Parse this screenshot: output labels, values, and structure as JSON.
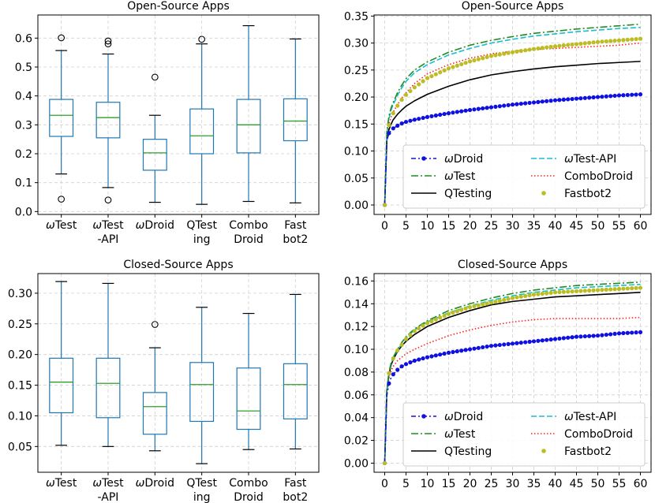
{
  "chart_data": [
    {
      "id": "box-open",
      "type": "box",
      "title": "Open-Source Apps",
      "ylim": [
        -0.01,
        0.68
      ],
      "yticks": [
        0.0,
        0.1,
        0.2,
        0.3,
        0.4,
        0.5,
        0.6
      ],
      "ytick_labels": [
        "0.0",
        "0.1",
        "0.2",
        "0.3",
        "0.4",
        "0.5",
        "0.6"
      ],
      "box_color": "#1f77b4",
      "median_color": "#2ca02c",
      "boxes": [
        {
          "label": [
            "ωTest",
            ""
          ],
          "whislo": 0.13,
          "q1": 0.26,
          "med": 0.333,
          "q3": 0.388,
          "whishi": 0.557,
          "fliers": [
            0.043,
            0.601
          ]
        },
        {
          "label": [
            "ωTest",
            "-API"
          ],
          "whislo": 0.083,
          "q1": 0.255,
          "med": 0.325,
          "q3": 0.378,
          "whishi": 0.545,
          "fliers": [
            0.04,
            0.58,
            0.59
          ]
        },
        {
          "label": [
            "ωDroid",
            ""
          ],
          "whislo": 0.032,
          "q1": 0.143,
          "med": 0.203,
          "q3": 0.25,
          "whishi": 0.333,
          "fliers": [
            0.465
          ]
        },
        {
          "label": [
            "QTest",
            "ing"
          ],
          "whislo": 0.025,
          "q1": 0.2,
          "med": 0.262,
          "q3": 0.355,
          "whishi": 0.58,
          "fliers": [
            0.596
          ]
        },
        {
          "label": [
            "Combo",
            "Droid"
          ],
          "whislo": 0.035,
          "q1": 0.203,
          "med": 0.3,
          "q3": 0.388,
          "whishi": 0.643,
          "fliers": []
        },
        {
          "label": [
            "Fast",
            "bot2"
          ],
          "whislo": 0.03,
          "q1": 0.245,
          "med": 0.313,
          "q3": 0.39,
          "whishi": 0.597,
          "fliers": []
        }
      ]
    },
    {
      "id": "box-closed",
      "type": "box",
      "title": "Closed-Source Apps",
      "ylim": [
        0.008,
        0.332
      ],
      "yticks": [
        0.05,
        0.1,
        0.15,
        0.2,
        0.25,
        0.3
      ],
      "ytick_labels": [
        "0.05",
        "0.10",
        "0.15",
        "0.20",
        "0.25",
        "0.30"
      ],
      "box_color": "#1f77b4",
      "median_color": "#2ca02c",
      "boxes": [
        {
          "label": [
            "ωTest",
            ""
          ],
          "whislo": 0.052,
          "q1": 0.105,
          "med": 0.155,
          "q3": 0.194,
          "whishi": 0.319,
          "fliers": []
        },
        {
          "label": [
            "ωTest",
            "-API"
          ],
          "whislo": 0.05,
          "q1": 0.097,
          "med": 0.153,
          "q3": 0.194,
          "whishi": 0.316,
          "fliers": []
        },
        {
          "label": [
            "ωDroid",
            ""
          ],
          "whislo": 0.043,
          "q1": 0.07,
          "med": 0.115,
          "q3": 0.138,
          "whishi": 0.211,
          "fliers": [
            0.249
          ]
        },
        {
          "label": [
            "QTest",
            "ing"
          ],
          "whislo": 0.022,
          "q1": 0.091,
          "med": 0.151,
          "q3": 0.187,
          "whishi": 0.277,
          "fliers": []
        },
        {
          "label": [
            "Combo",
            "Droid"
          ],
          "whislo": 0.045,
          "q1": 0.078,
          "med": 0.108,
          "q3": 0.178,
          "whishi": 0.267,
          "fliers": []
        },
        {
          "label": [
            "Fast",
            "bot2"
          ],
          "whislo": 0.046,
          "q1": 0.095,
          "med": 0.151,
          "q3": 0.185,
          "whishi": 0.298,
          "fliers": []
        }
      ]
    },
    {
      "id": "line-open",
      "type": "line",
      "title": "Open-Source Apps",
      "xlim": [
        -2.5,
        62.5
      ],
      "ylim": [
        -0.0175,
        0.352
      ],
      "xticks": [
        0,
        5,
        10,
        15,
        20,
        25,
        30,
        35,
        40,
        45,
        50,
        55,
        60
      ],
      "xtick_labels": [
        "0",
        "5",
        "10",
        "15",
        "20",
        "25",
        "30",
        "35",
        "40",
        "45",
        "50",
        "55",
        "60"
      ],
      "yticks": [
        0.0,
        0.05,
        0.1,
        0.15,
        0.2,
        0.25,
        0.3,
        0.35
      ],
      "ytick_labels": [
        "0.00",
        "0.05",
        "0.10",
        "0.15",
        "0.20",
        "0.25",
        "0.30",
        "0.35"
      ],
      "x": [
        0,
        0.5,
        1,
        1.5,
        2,
        3,
        4,
        5,
        7,
        10,
        15,
        20,
        25,
        30,
        35,
        40,
        45,
        50,
        55,
        60
      ],
      "series": [
        {
          "name": "ωDroid",
          "style": "dash-dot-marker",
          "color": "#1010e0",
          "values": [
            0,
            0.12,
            0.133,
            0.138,
            0.142,
            0.147,
            0.151,
            0.154,
            0.158,
            0.163,
            0.17,
            0.176,
            0.181,
            0.186,
            0.19,
            0.194,
            0.197,
            0.2,
            0.203,
            0.205
          ]
        },
        {
          "name": "ωTest",
          "style": "dashdot",
          "color": "#228b22",
          "values": [
            0,
            0.135,
            0.165,
            0.18,
            0.19,
            0.208,
            0.222,
            0.234,
            0.25,
            0.265,
            0.283,
            0.296,
            0.305,
            0.312,
            0.318,
            0.322,
            0.326,
            0.329,
            0.332,
            0.335
          ]
        },
        {
          "name": "QTesting",
          "style": "solid",
          "color": "#000000",
          "values": [
            0,
            0.12,
            0.14,
            0.15,
            0.158,
            0.168,
            0.176,
            0.183,
            0.193,
            0.205,
            0.22,
            0.232,
            0.241,
            0.247,
            0.252,
            0.256,
            0.259,
            0.262,
            0.264,
            0.266
          ]
        },
        {
          "name": "ωTest-API",
          "style": "dashed",
          "color": "#17becf",
          "values": [
            0,
            0.132,
            0.16,
            0.176,
            0.186,
            0.203,
            0.217,
            0.229,
            0.245,
            0.26,
            0.278,
            0.29,
            0.3,
            0.307,
            0.313,
            0.317,
            0.321,
            0.324,
            0.327,
            0.329
          ]
        },
        {
          "name": "ComboDroid",
          "style": "dotted",
          "color": "#ff2020",
          "values": [
            0,
            0.125,
            0.15,
            0.163,
            0.172,
            0.186,
            0.198,
            0.208,
            0.225,
            0.243,
            0.26,
            0.272,
            0.28,
            0.285,
            0.288,
            0.29,
            0.292,
            0.294,
            0.296,
            0.3
          ]
        },
        {
          "name": "Fastbot2",
          "style": "dots",
          "color": "#bcbd22",
          "values": [
            0,
            0.125,
            0.148,
            0.16,
            0.17,
            0.184,
            0.195,
            0.204,
            0.218,
            0.235,
            0.253,
            0.266,
            0.276,
            0.283,
            0.289,
            0.294,
            0.298,
            0.302,
            0.305,
            0.308
          ]
        }
      ],
      "legend": {
        "location": "lower-right",
        "columns": 2
      }
    },
    {
      "id": "line-closed",
      "type": "line",
      "title": "Closed-Source Apps",
      "xlim": [
        -2.5,
        62.5
      ],
      "ylim": [
        -0.008,
        0.1665
      ],
      "xticks": [
        0,
        5,
        10,
        15,
        20,
        25,
        30,
        35,
        40,
        45,
        50,
        55,
        60
      ],
      "xtick_labels": [
        "0",
        "5",
        "10",
        "15",
        "20",
        "25",
        "30",
        "35",
        "40",
        "45",
        "50",
        "55",
        "60"
      ],
      "yticks": [
        0.0,
        0.02,
        0.04,
        0.06,
        0.08,
        0.1,
        0.12,
        0.14,
        0.16
      ],
      "ytick_labels": [
        "0.00",
        "0.02",
        "0.04",
        "0.06",
        "0.08",
        "0.10",
        "0.12",
        "0.14",
        "0.16"
      ],
      "x": [
        0,
        0.5,
        1,
        1.5,
        2,
        3,
        4,
        5,
        7,
        10,
        15,
        20,
        25,
        30,
        35,
        40,
        45,
        50,
        55,
        60
      ],
      "series": [
        {
          "name": "ωDroid",
          "style": "dash-dot-marker",
          "color": "#1010e0",
          "values": [
            0,
            0.06,
            0.07,
            0.075,
            0.078,
            0.082,
            0.085,
            0.087,
            0.09,
            0.093,
            0.097,
            0.1,
            0.103,
            0.105,
            0.107,
            0.109,
            0.111,
            0.112,
            0.114,
            0.115
          ]
        },
        {
          "name": "ωTest",
          "style": "dashdot",
          "color": "#228b22",
          "values": [
            0,
            0.065,
            0.08,
            0.088,
            0.093,
            0.1,
            0.106,
            0.111,
            0.118,
            0.125,
            0.134,
            0.14,
            0.145,
            0.149,
            0.152,
            0.154,
            0.156,
            0.157,
            0.158,
            0.159
          ]
        },
        {
          "name": "QTesting",
          "style": "solid",
          "color": "#000000",
          "values": [
            0,
            0.064,
            0.078,
            0.086,
            0.091,
            0.098,
            0.103,
            0.107,
            0.113,
            0.12,
            0.128,
            0.134,
            0.139,
            0.142,
            0.144,
            0.146,
            0.147,
            0.148,
            0.149,
            0.15
          ]
        },
        {
          "name": "ωTest-API",
          "style": "dashed",
          "color": "#17becf",
          "values": [
            0,
            0.064,
            0.079,
            0.087,
            0.092,
            0.099,
            0.105,
            0.11,
            0.117,
            0.124,
            0.132,
            0.138,
            0.143,
            0.147,
            0.15,
            0.152,
            0.154,
            0.155,
            0.156,
            0.157
          ]
        },
        {
          "name": "ComboDroid",
          "style": "dotted",
          "color": "#ff2020",
          "values": [
            0,
            0.062,
            0.075,
            0.081,
            0.085,
            0.09,
            0.093,
            0.096,
            0.1,
            0.105,
            0.112,
            0.117,
            0.121,
            0.124,
            0.126,
            0.127,
            0.127,
            0.127,
            0.127,
            0.128
          ]
        },
        {
          "name": "Fastbot2",
          "style": "dots",
          "color": "#bcbd22",
          "values": [
            0,
            0.064,
            0.079,
            0.087,
            0.092,
            0.099,
            0.104,
            0.109,
            0.116,
            0.123,
            0.131,
            0.137,
            0.141,
            0.145,
            0.148,
            0.15,
            0.151,
            0.152,
            0.153,
            0.154
          ]
        }
      ],
      "legend": {
        "location": "lower-right",
        "columns": 2
      }
    }
  ]
}
